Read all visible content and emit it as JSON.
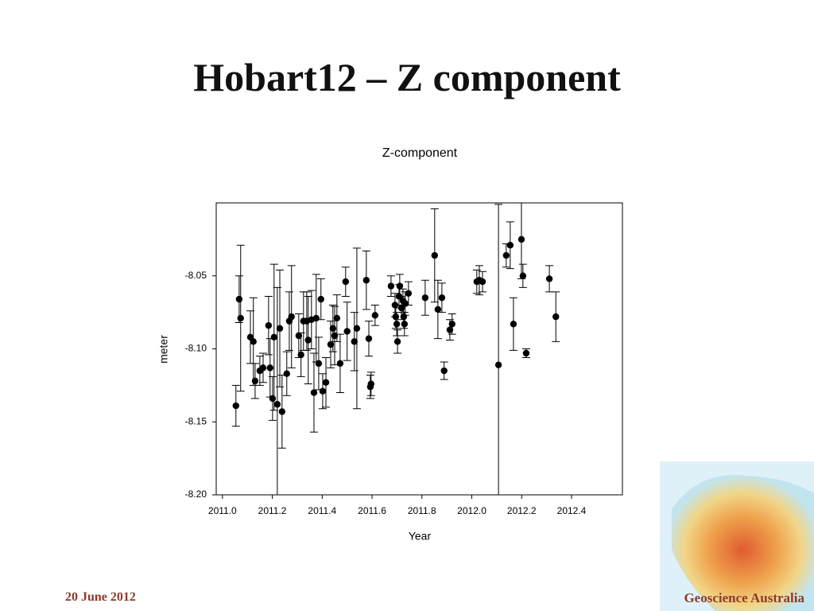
{
  "slide": {
    "title": "Hobart12 – Z component",
    "date": "20 June 2012",
    "organization": "Geoscience Australia"
  },
  "chart_data": {
    "type": "scatter",
    "title": "Z-component",
    "xlabel": "Year",
    "ylabel": "meter",
    "xlim": [
      2010.975,
      2012.604
    ],
    "ylim": [
      -8.2,
      -8.0
    ],
    "xticks": [
      {
        "value": 2011.0,
        "label": "2011.0"
      },
      2011.2,
      2011.4,
      2011.6,
      2011.8,
      {
        "value": 2012.0,
        "label": "2012.0"
      },
      2012.2,
      2012.4
    ],
    "yticks": [
      {
        "value": -8.2,
        "label": "-8.20"
      },
      -8.15,
      {
        "value": -8.1,
        "label": "-8.10"
      },
      -8.05
    ],
    "series": [
      {
        "color": "#000000",
        "x": [
          2011.054,
          2011.067,
          2011.073,
          2011.112,
          2011.124,
          2011.131,
          2011.15,
          2011.163,
          2011.185,
          2011.191,
          2011.201,
          2011.207,
          2011.22,
          2011.23,
          2011.239,
          2011.258,
          2011.268,
          2011.277,
          2011.306,
          2011.315,
          2011.325,
          2011.338,
          2011.344,
          2011.357,
          2011.367,
          2011.376,
          2011.386,
          2011.395,
          2011.402,
          2011.415,
          2011.434,
          2011.443,
          2011.45,
          2011.459,
          2011.472,
          2011.494,
          2011.5,
          2011.529,
          2011.539,
          2011.577,
          2011.587,
          2011.593,
          2011.596,
          2011.612,
          2011.676,
          2011.692,
          2011.695,
          2011.699,
          2011.702,
          2011.708,
          2011.711,
          2011.718,
          2011.724,
          2011.727,
          2011.73,
          2011.733,
          2011.746,
          2011.813,
          2011.851,
          2011.864,
          2011.88,
          2011.889,
          2011.912,
          2011.921,
          2012.02,
          2012.03,
          2012.043,
          2012.107,
          2012.138,
          2012.154,
          2012.167,
          2012.199,
          2012.205,
          2012.218,
          2012.311,
          2012.337
        ],
        "values": [
          -8.139,
          -8.066,
          -8.079,
          -8.092,
          -8.095,
          -8.122,
          -8.115,
          -8.113,
          -8.084,
          -8.113,
          -8.134,
          -8.092,
          -8.138,
          -8.086,
          -8.143,
          -8.117,
          -8.081,
          -8.078,
          -8.091,
          -8.104,
          -8.081,
          -8.081,
          -8.094,
          -8.08,
          -8.13,
          -8.079,
          -8.11,
          -8.066,
          -8.129,
          -8.123,
          -8.097,
          -8.086,
          -8.091,
          -8.079,
          -8.11,
          -8.054,
          -8.088,
          -8.095,
          -8.086,
          -8.053,
          -8.093,
          -8.126,
          -8.124,
          -8.077,
          -8.057,
          -8.07,
          -8.078,
          -8.083,
          -8.095,
          -8.064,
          -8.057,
          -8.072,
          -8.067,
          -8.078,
          -8.083,
          -8.069,
          -8.062,
          -8.065,
          -8.036,
          -8.073,
          -8.065,
          -8.115,
          -8.087,
          -8.083,
          -8.054,
          -8.053,
          -8.054,
          -8.111,
          -8.036,
          -8.029,
          -8.083,
          -8.025,
          -8.05,
          -8.103,
          -8.052,
          -8.078
        ],
        "errors": [
          0.014,
          0.016,
          0.05,
          0.018,
          0.03,
          0.012,
          0.01,
          0.01,
          0.02,
          0.02,
          0.015,
          0.05,
          0.08,
          0.04,
          0.025,
          0.015,
          0.02,
          0.035,
          0.015,
          0.015,
          0.02,
          0.02,
          0.03,
          0.02,
          0.027,
          0.03,
          0.018,
          0.014,
          0.012,
          0.017,
          0.016,
          0.016,
          0.02,
          0.016,
          0.02,
          0.01,
          0.02,
          0.02,
          0.055,
          0.02,
          0.012,
          0.008,
          0.008,
          0.007,
          0.007,
          0.008,
          0.008,
          0.008,
          0.008,
          0.008,
          0.008,
          0.008,
          0.008,
          0.008,
          0.008,
          0.008,
          0.008,
          0.012,
          0.032,
          0.02,
          0.01,
          0.006,
          0.007,
          0.007,
          0.008,
          0.01,
          0.007,
          0.11,
          0.008,
          0.016,
          0.018,
          0.027,
          0.008,
          0.003,
          0.009,
          0.017
        ]
      }
    ]
  }
}
